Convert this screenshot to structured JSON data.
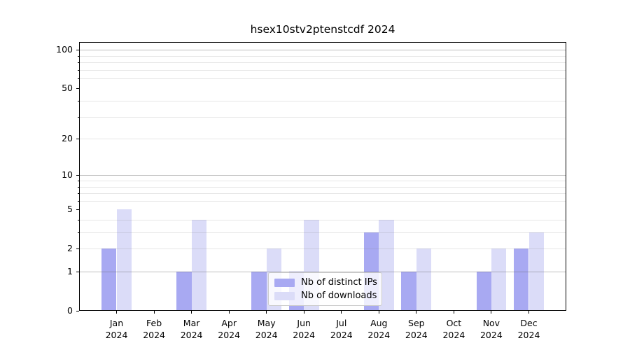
{
  "figure": {
    "background": "#ffffff"
  },
  "chart_data": {
    "type": "bar",
    "title": "hsex10stv2ptenstcdf 2024",
    "xlabel": "",
    "ylabel": "",
    "categories": [
      "Jan 2024",
      "Feb 2024",
      "Mar 2024",
      "Apr 2024",
      "May 2024",
      "Jun 2024",
      "Jul 2024",
      "Aug 2024",
      "Sep 2024",
      "Oct 2024",
      "Nov 2024",
      "Dec 2024"
    ],
    "series": [
      {
        "name": "Nb of distinct IPs",
        "color": "#a8a9f2",
        "values": [
          2,
          0,
          1,
          0,
          1,
          1,
          0,
          3,
          1,
          0,
          1,
          2
        ]
      },
      {
        "name": "Nb of downloads",
        "color": "#dbdcf8",
        "values": [
          5,
          0,
          4,
          0,
          2,
          4,
          0,
          4,
          2,
          0,
          2,
          3
        ]
      }
    ],
    "yscale": "log1p",
    "ylim": [
      0,
      115
    ],
    "y_tick_values": [
      0,
      1,
      2,
      5,
      10,
      20,
      50,
      100
    ],
    "y_major_gridlines": [
      1,
      10,
      100
    ],
    "y_minor_gridlines": [
      2,
      3,
      4,
      6,
      7,
      8,
      9,
      20,
      30,
      40,
      60,
      70,
      80,
      90
    ],
    "grid": "on",
    "legend_position": "lower center",
    "colors": {
      "axis": "#000000",
      "text": "#000000",
      "major_grid": "#b3b3b3",
      "minor_grid": "#e6e6e6",
      "legend_border": "#cccccc",
      "legend_background": "rgba(255,255,255,0.8)"
    }
  }
}
